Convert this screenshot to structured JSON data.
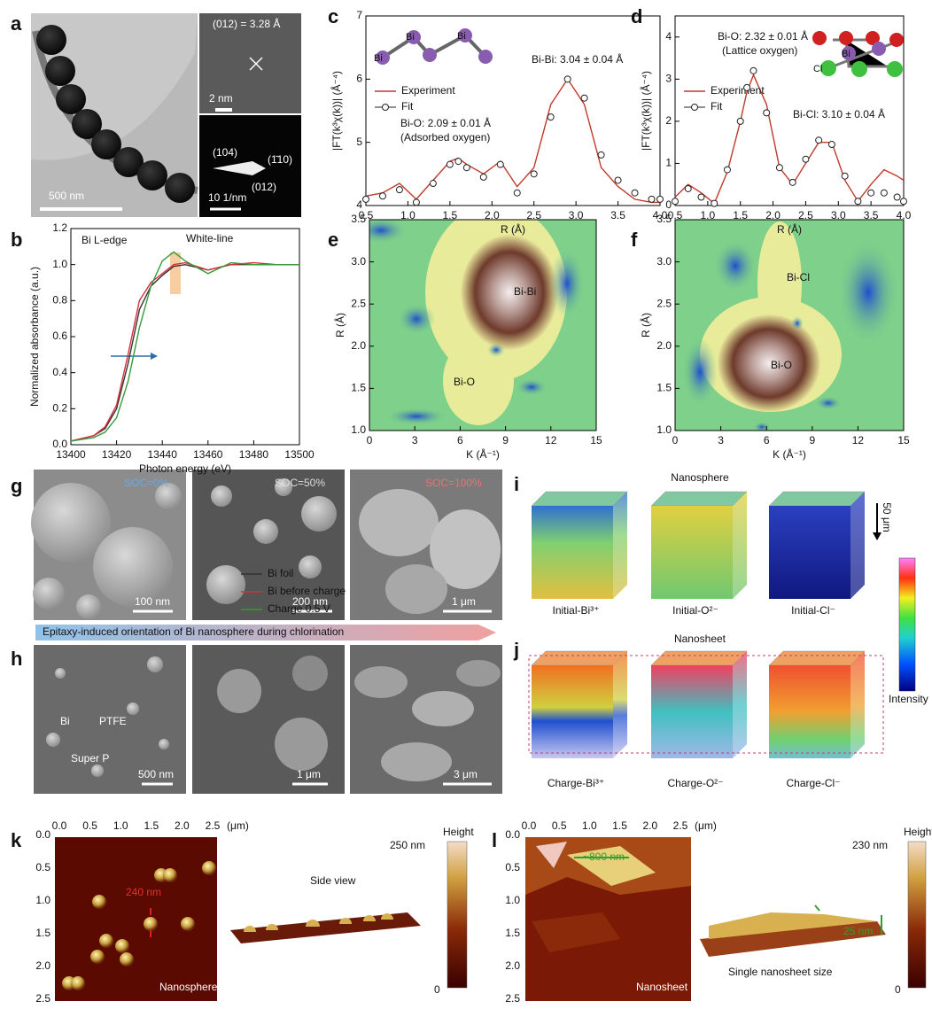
{
  "panels": {
    "a": {
      "label": "a",
      "texts": [
        "(012) = 3.28 Å",
        "2 nm",
        "(104)",
        "(1̄10)",
        "(012)",
        "10 1/nm",
        "500 nm"
      ]
    },
    "b": {
      "label": "b"
    },
    "c": {
      "label": "c",
      "inset_atoms": [
        "Bi",
        "Bi",
        "Bi"
      ]
    },
    "d": {
      "label": "d",
      "inset_atoms": [
        "Cl",
        "Bi"
      ]
    },
    "e": {
      "label": "e"
    },
    "f": {
      "label": "f"
    },
    "g": {
      "label": "g",
      "soc": [
        "SOC=0%",
        "SOC=50%",
        "SOC=100%"
      ],
      "scale_bars": [
        "100 nm",
        "200 nm",
        "1 μm"
      ]
    },
    "arrow_text": "Epitaxy-induced orientation of Bi nanosphere during chlorination",
    "h": {
      "label": "h",
      "annotations": [
        "Bi",
        "PTFE",
        "Super P"
      ],
      "scale_bars": [
        "500 nm",
        "1 μm",
        "3 μm"
      ]
    },
    "i": {
      "label": "i",
      "title": "Nanosphere",
      "depth": "50 μm",
      "captions": [
        "Initial-Bi³⁺",
        "Initial-O²⁻",
        "Initial-Cl⁻"
      ]
    },
    "j": {
      "label": "j",
      "title": "Nanosheet",
      "captions": [
        "Charge-Bi³⁺",
        "Charge-O²⁻",
        "Charge-Cl⁻"
      ]
    },
    "intensity": "Intensity",
    "k": {
      "label": "k",
      "xticks": [
        "0.0",
        "0.5",
        "1.0",
        "1.5",
        "2.0",
        "2.5"
      ],
      "unit": "(μm)",
      "yticks": [
        "0.0",
        "0.5",
        "1.0",
        "1.5",
        "2.0",
        "2.5"
      ],
      "size": "240 nm",
      "name": "Nanosphere",
      "side": "Side view",
      "height": "Height",
      "hmax": "250 nm",
      "hmin": "0"
    },
    "l": {
      "label": "l",
      "xticks": [
        "0.0",
        "0.5",
        "1.0",
        "1.5",
        "2.0",
        "2.5"
      ],
      "unit": "(μm)",
      "yticks": [
        "0.0",
        "0.5",
        "1.0",
        "1.5",
        "2.0",
        "2.5"
      ],
      "size": "~800 nm",
      "name": "Nanosheet",
      "thick": "25 nm",
      "side": "Single nanosheet size",
      "height": "Height",
      "hmax": "230 nm",
      "hmin": "0"
    }
  },
  "chart_data": [
    {
      "type": "line",
      "x_label": "Photon energy (eV)",
      "y_label": "Normalized absorbance (a.u.)",
      "annotations": [
        "Bi L-edge",
        "White-line"
      ],
      "x": [
        13400,
        13410,
        13415,
        13420,
        13425,
        13430,
        13435,
        13440,
        13445,
        13450,
        13460,
        13470,
        13480,
        13490,
        13500
      ],
      "series": [
        {
          "name": "Bi foil",
          "color": "#333333",
          "values": [
            0.02,
            0.05,
            0.09,
            0.2,
            0.45,
            0.75,
            0.88,
            0.94,
            0.99,
            1.0,
            0.97,
            1.0,
            1.0,
            1.0,
            1.0
          ]
        },
        {
          "name": "Bi before charge",
          "color": "#d6303a",
          "values": [
            0.02,
            0.05,
            0.1,
            0.22,
            0.5,
            0.8,
            0.9,
            0.95,
            1.0,
            1.01,
            0.97,
            1.0,
            1.01,
            1.0,
            1.0
          ]
        },
        {
          "name": "Charge 0.5 V",
          "color": "#3a9a3a",
          "values": [
            0.02,
            0.04,
            0.07,
            0.15,
            0.35,
            0.65,
            0.88,
            1.02,
            1.07,
            1.02,
            0.95,
            1.01,
            1.0,
            1.0,
            1.0
          ]
        }
      ],
      "xlim": [
        13400,
        13500
      ],
      "xticks": [
        13400,
        13420,
        13440,
        13460,
        13480,
        13500
      ],
      "ylim": [
        0,
        1.2
      ],
      "yticks": [
        {
          "value": 0,
          "label": "0.0"
        },
        0.2,
        0.4,
        0.6,
        0.8,
        {
          "value": 1,
          "label": "1.0"
        },
        1.2
      ],
      "legend": "center right"
    },
    {
      "type": "line",
      "x_label": "R (Å)",
      "y_label": "|FT(k³χ(k))| (Å⁻⁴)",
      "annotations": [
        "Bi-Bi: 3.04 ± 0.04 Å",
        "Bi-O: 2.09 ± 0.01 Å",
        "(Adsorbed oxygen)"
      ],
      "x": [
        0.5,
        0.7,
        0.9,
        1.1,
        1.3,
        1.5,
        1.6,
        1.7,
        1.9,
        2.1,
        2.3,
        2.5,
        2.7,
        2.9,
        3.1,
        3.3,
        3.5,
        3.7,
        3.9,
        4.0
      ],
      "series": [
        {
          "name": "Experiment",
          "color": "#c0392b",
          "values": [
            4.15,
            4.2,
            4.35,
            4.1,
            4.4,
            4.7,
            4.75,
            4.65,
            4.5,
            4.7,
            4.3,
            4.6,
            5.6,
            6.0,
            5.6,
            4.6,
            4.3,
            4.1,
            4.05,
            4.05
          ]
        },
        {
          "name": "Fit",
          "color": "#222222",
          "marker": "circle",
          "values": [
            4.1,
            4.15,
            4.25,
            4.05,
            4.35,
            4.65,
            4.7,
            4.6,
            4.45,
            4.65,
            4.2,
            4.5,
            5.4,
            6.0,
            5.7,
            4.8,
            4.4,
            4.2,
            4.1,
            4.1
          ]
        }
      ],
      "xlim": [
        0.5,
        4.0
      ],
      "xticks": [
        0.5,
        {
          "value": 1,
          "label": "1.0"
        },
        1.5,
        {
          "value": 2,
          "label": "2.0"
        },
        2.5,
        {
          "value": 3,
          "label": "3.0"
        },
        3.5,
        {
          "value": 4,
          "label": "4.0"
        }
      ],
      "ylim": [
        4,
        7
      ],
      "yticks": [
        4,
        5,
        6,
        7
      ],
      "legend": "upper left"
    },
    {
      "type": "line",
      "x_label": "R (Å)",
      "y_label": "|FT(k³χ(k))| (Å⁻⁴)",
      "annotations": [
        "Bi-O: 2.32 ± 0.01 Å",
        "(Lattice oxygen)",
        "Bi-Cl: 3.10 ± 0.04 Å"
      ],
      "x": [
        0.5,
        0.7,
        0.9,
        1.1,
        1.3,
        1.5,
        1.6,
        1.7,
        1.9,
        2.1,
        2.3,
        2.5,
        2.7,
        2.9,
        3.1,
        3.3,
        3.5,
        3.7,
        3.9,
        4.0
      ],
      "series": [
        {
          "name": "Experiment",
          "color": "#c0392b",
          "values": [
            0.2,
            0.5,
            0.3,
            0.05,
            0.8,
            2.0,
            2.7,
            3.1,
            2.4,
            0.9,
            0.5,
            1.0,
            1.5,
            1.5,
            0.6,
            0.1,
            0.5,
            0.85,
            0.7,
            0.6
          ]
        },
        {
          "name": "Fit",
          "color": "#222222",
          "marker": "circle",
          "values": [
            0.1,
            0.4,
            0.2,
            0.05,
            0.85,
            2.0,
            2.8,
            3.2,
            2.2,
            0.9,
            0.55,
            1.1,
            1.55,
            1.45,
            0.7,
            0.1,
            0.3,
            0.3,
            0.2,
            0.1
          ]
        }
      ],
      "xlim": [
        0.5,
        4.0
      ],
      "xticks": [
        0.5,
        {
          "value": 1,
          "label": "1.0"
        },
        1.5,
        {
          "value": 2,
          "label": "2.0"
        },
        2.5,
        {
          "value": 3,
          "label": "3.0"
        },
        3.5,
        {
          "value": 4,
          "label": "4.0"
        }
      ],
      "ylim": [
        0,
        4.5
      ],
      "yticks": [
        0,
        1,
        2,
        3,
        4
      ],
      "legend": "upper left"
    },
    {
      "type": "heatmap",
      "x_label": "K (Å⁻¹)",
      "y_label": "R (Å)",
      "annotations": [
        "Bi-Bi",
        "Bi-O"
      ],
      "xlim": [
        0,
        15
      ],
      "xticks": [
        0,
        3,
        6,
        9,
        12,
        15
      ],
      "ylim": [
        1,
        3.5
      ],
      "yticks": [
        {
          "value": 1,
          "label": "1.0"
        },
        1.5,
        {
          "value": 2,
          "label": "2.0"
        },
        2.5,
        {
          "value": 3,
          "label": "3.0"
        },
        3.5
      ]
    },
    {
      "type": "heatmap",
      "x_label": "K (Å⁻¹)",
      "y_label": "R (Å)",
      "annotations": [
        "Bi-Cl",
        "Bi-O"
      ],
      "xlim": [
        0,
        15
      ],
      "xticks": [
        0,
        3,
        6,
        9,
        12,
        15
      ],
      "ylim": [
        1,
        3.5
      ],
      "yticks": [
        {
          "value": 1,
          "label": "1.0"
        },
        1.5,
        {
          "value": 2,
          "label": "2.0"
        },
        2.5,
        {
          "value": 3,
          "label": "3.0"
        },
        3.5
      ]
    }
  ]
}
